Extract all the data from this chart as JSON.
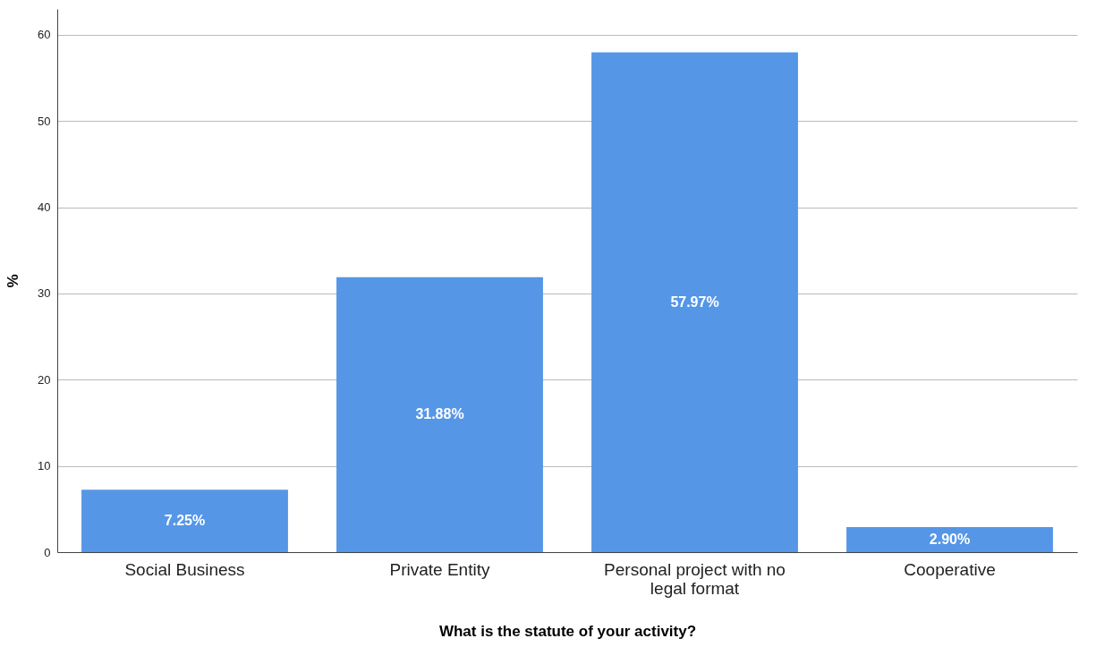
{
  "chart_data": {
    "type": "bar",
    "xlabel": "What is the statute of your activity?",
    "ylabel": "%",
    "categories": [
      "Social Business",
      "Private Entity",
      "Personal project with no legal format",
      "Cooperative"
    ],
    "values": [
      7.25,
      31.88,
      57.97,
      2.9
    ],
    "value_labels": [
      "7.25%",
      "31.88%",
      "57.97%",
      "2.90%"
    ],
    "color": "#5596e6",
    "ylim": [
      0,
      63
    ],
    "yticks": [
      0,
      10,
      20,
      30,
      40,
      50,
      60
    ],
    "grid": "y"
  }
}
